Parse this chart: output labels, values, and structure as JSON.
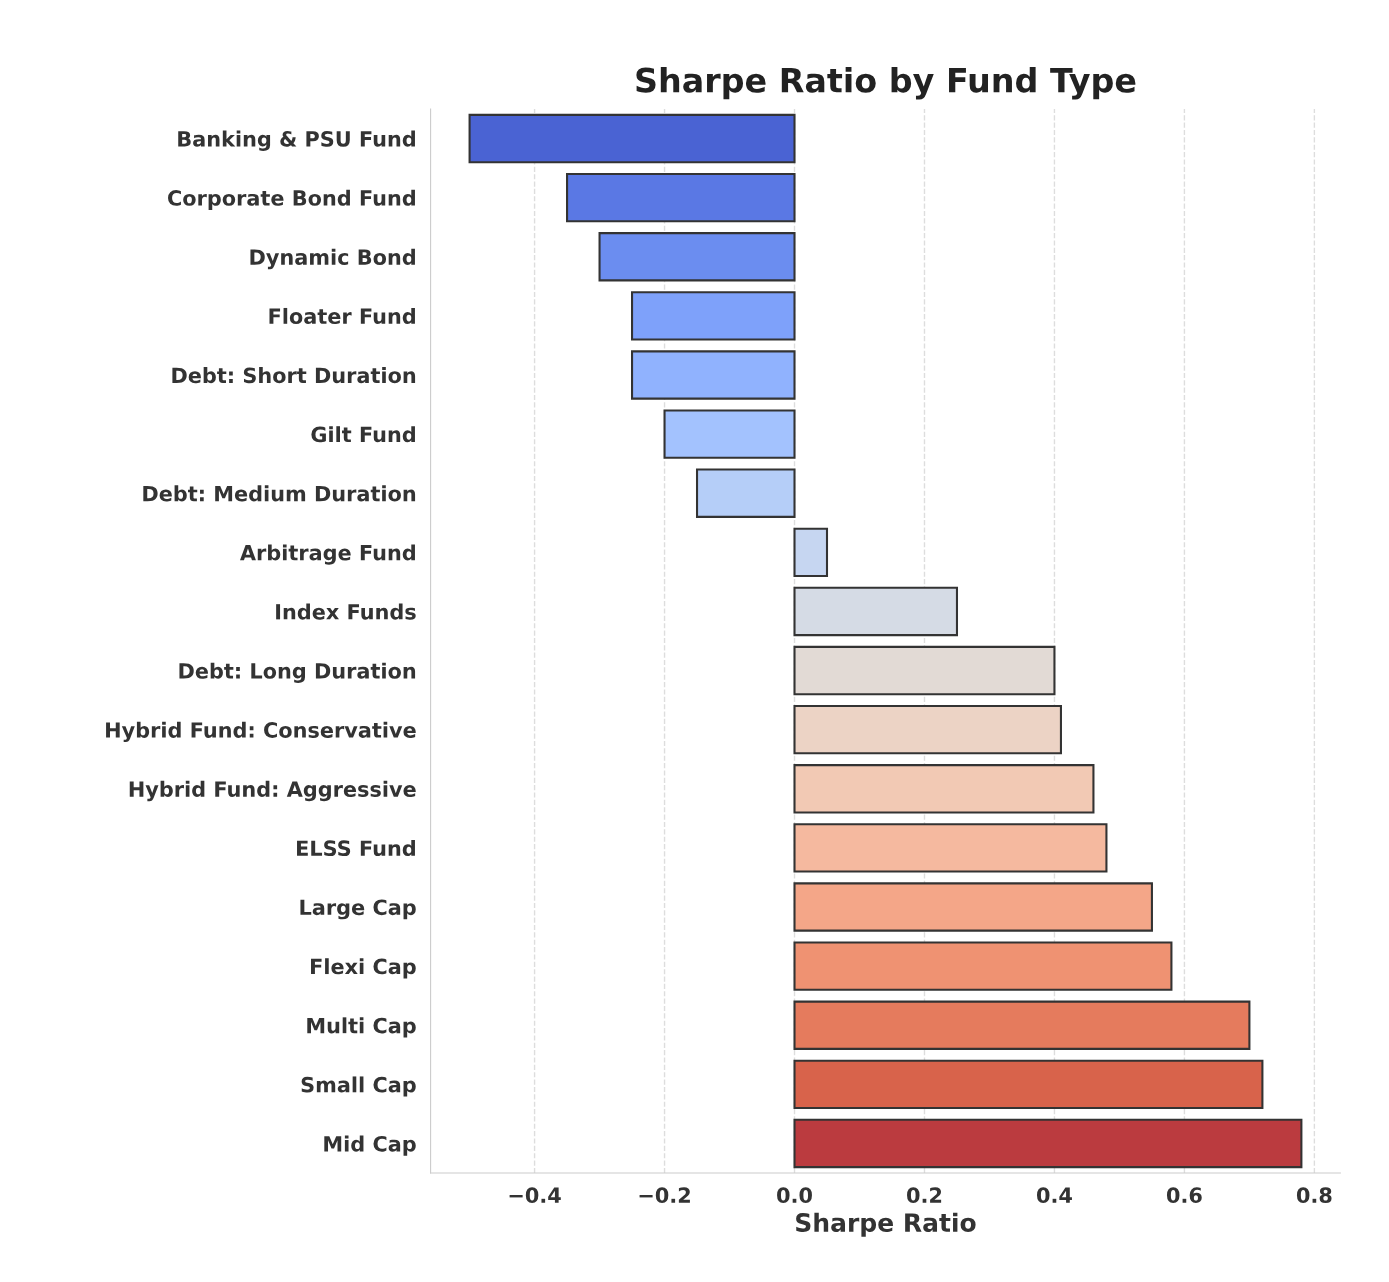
{
  "chart_data": {
    "type": "bar",
    "orientation": "horizontal",
    "title": "Sharpe Ratio by Fund Type",
    "xlabel": "Sharpe Ratio",
    "categories": [
      "Banking & PSU Fund",
      "Corporate Bond Fund",
      "Dynamic Bond",
      "Floater Fund",
      "Debt: Short Duration",
      "Gilt Fund",
      "Debt: Medium Duration",
      "Arbitrage Fund",
      "Index Funds",
      "Debt: Long Duration",
      "Hybrid Fund: Conservative",
      "Hybrid Fund: Aggressive",
      "ELSS Fund",
      "Large Cap",
      "Flexi Cap",
      "Multi Cap",
      "Small Cap",
      "Mid Cap"
    ],
    "values": [
      -0.5,
      -0.35,
      -0.3,
      -0.25,
      -0.25,
      -0.2,
      -0.15,
      0.05,
      0.25,
      0.4,
      0.41,
      0.46,
      0.48,
      0.55,
      0.58,
      0.7,
      0.72,
      0.78
    ],
    "colors": [
      "#4a63d3",
      "#5a78e4",
      "#6b8df0",
      "#7ea1fa",
      "#90b2fe",
      "#a3c2fe",
      "#b5cef8",
      "#c6d6f1",
      "#d5dbe5",
      "#e2dad5",
      "#ecd3c5",
      "#f2c9b4",
      "#f5b99f",
      "#f4a688",
      "#ef9272",
      "#e57b5d",
      "#d8634b",
      "#bb3b3f"
    ],
    "xlim": [
      -0.56,
      0.84
    ],
    "xticks": [
      {
        "value": -0.4,
        "label": "−0.4"
      },
      {
        "value": -0.2,
        "label": "−0.2"
      },
      {
        "value": 0.0,
        "label": "0.0"
      },
      {
        "value": 0.2,
        "label": "0.2"
      },
      {
        "value": 0.4,
        "label": "0.4"
      },
      {
        "value": 0.6,
        "label": "0.6"
      },
      {
        "value": 0.8,
        "label": "0.8"
      }
    ],
    "grid": "x",
    "legend": false
  }
}
